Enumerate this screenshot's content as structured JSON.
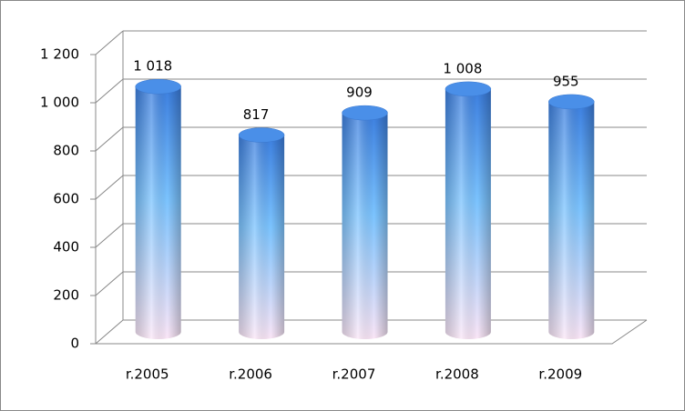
{
  "chart_data": {
    "type": "cylinder",
    "categories": [
      "r.2005",
      "r.2006",
      "r.2007",
      "r.2008",
      "r.2009"
    ],
    "values": [
      1018,
      817,
      909,
      1008,
      955
    ],
    "value_labels": [
      "1 018",
      "817",
      "909",
      "1 008",
      "955"
    ],
    "ylim": [
      0,
      1200
    ],
    "yticks": [
      0,
      200,
      400,
      600,
      800,
      {
        "value": 1000,
        "label": "1 000"
      },
      {
        "value": 1200,
        "label": "1 200"
      }
    ],
    "grid": true
  }
}
